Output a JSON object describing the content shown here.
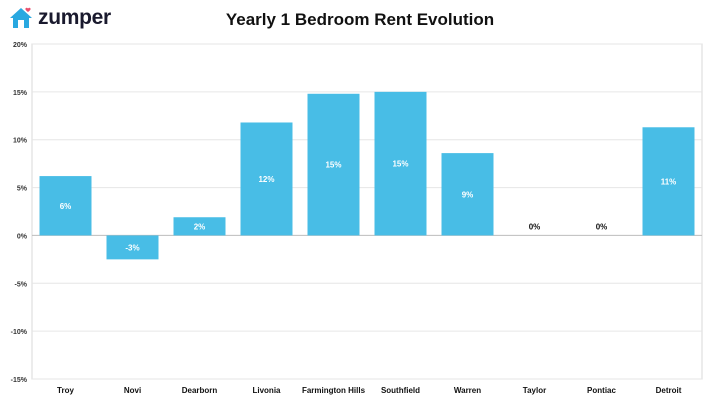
{
  "header": {
    "logo_text": "zumper",
    "logo_icon": "house-heart-icon",
    "brand_color": "#29a8e0",
    "heart_color": "#e8506e"
  },
  "chart_data": {
    "type": "bar",
    "title": "Yearly 1 Bedroom Rent Evolution",
    "xlabel": "",
    "ylabel": "",
    "categories": [
      "Troy",
      "Novi",
      "Dearborn",
      "Livonia",
      "Farmington Hills",
      "Southfield",
      "Warren",
      "Taylor",
      "Pontiac",
      "Detroit"
    ],
    "values": [
      6.2,
      -2.5,
      1.9,
      11.8,
      14.8,
      15.0,
      8.6,
      0,
      0,
      11.3
    ],
    "data_labels": [
      "6%",
      "-3%",
      "2%",
      "12%",
      "15%",
      "15%",
      "9%",
      "0%",
      "0%",
      "11%"
    ],
    "ylim": [
      -15,
      20
    ],
    "yticks": [
      20,
      15,
      10,
      5,
      0,
      -5,
      -10,
      -15
    ],
    "ytick_labels": [
      "20%",
      "15%",
      "10%",
      "5%",
      "0%",
      "-5%",
      "-10%",
      "-15%"
    ],
    "grid": true,
    "bar_color": "#48bde6"
  }
}
